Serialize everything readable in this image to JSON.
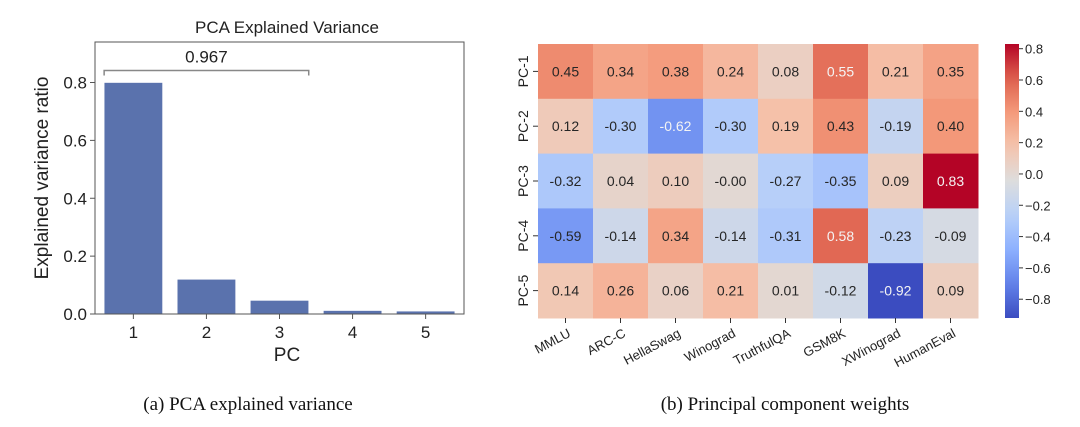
{
  "chart_data": [
    {
      "type": "bar",
      "title": "PCA Explained Variance",
      "xlabel": "PC",
      "ylabel": "Explained variance ratio",
      "categories": [
        "1",
        "2",
        "3",
        "4",
        "5"
      ],
      "values": [
        0.8,
        0.12,
        0.047,
        0.012,
        0.01
      ],
      "ylim": [
        0,
        0.94
      ],
      "yticks": [
        "0.0",
        "0.2",
        "0.4",
        "0.6",
        "0.8"
      ],
      "ytick_values": [
        0.0,
        0.2,
        0.4,
        0.6,
        0.8
      ],
      "bar_color": "#5a72ad",
      "annotation": {
        "text": "0.967",
        "span": [
          "1",
          "3"
        ],
        "description": "cumulative explained variance of first 3 PCs"
      },
      "grid": false,
      "caption": "(a) PCA explained variance"
    },
    {
      "type": "heatmap",
      "title": "",
      "rows": [
        "PC-1",
        "PC-2",
        "PC-3",
        "PC-4",
        "PC-5"
      ],
      "columns": [
        "MMLU",
        "ARC-C",
        "HellaSwag",
        "Winograd",
        "TruthfulQA",
        "GSM8K",
        "XWinograd",
        "HumanEval"
      ],
      "values": [
        [
          0.45,
          0.34,
          0.38,
          0.24,
          0.08,
          0.55,
          0.21,
          0.35
        ],
        [
          0.12,
          -0.3,
          -0.62,
          -0.3,
          0.19,
          0.43,
          -0.19,
          0.4
        ],
        [
          -0.32,
          0.04,
          0.1,
          -0.0,
          -0.27,
          -0.35,
          0.09,
          0.83
        ],
        [
          -0.59,
          -0.14,
          0.34,
          -0.14,
          -0.31,
          0.58,
          -0.23,
          -0.09
        ],
        [
          0.14,
          0.26,
          0.06,
          0.21,
          0.01,
          -0.12,
          -0.92,
          0.09
        ]
      ],
      "labels": [
        [
          "0.45",
          "0.34",
          "0.38",
          "0.24",
          "0.08",
          "0.55",
          "0.21",
          "0.35"
        ],
        [
          "0.12",
          "-0.30",
          "-0.62",
          "-0.30",
          "0.19",
          "0.43",
          "-0.19",
          "0.40"
        ],
        [
          "-0.32",
          "0.04",
          "0.10",
          "-0.00",
          "-0.27",
          "-0.35",
          "0.09",
          "0.83"
        ],
        [
          "-0.59",
          "-0.14",
          "0.34",
          "-0.14",
          "-0.31",
          "0.58",
          "-0.23",
          "-0.09"
        ],
        [
          "0.14",
          "0.26",
          "0.06",
          "0.21",
          "0.01",
          "-0.12",
          "-0.92",
          "0.09"
        ]
      ],
      "colormap": "coolwarm",
      "vmin": -0.92,
      "vmax": 0.83,
      "colorbar_ticks": [
        "0.8",
        "0.6",
        "0.4",
        "0.2",
        "0.0",
        "−0.2",
        "−0.4",
        "−0.6",
        "−0.8"
      ],
      "colorbar_tick_values": [
        0.8,
        0.6,
        0.4,
        0.2,
        0.0,
        -0.2,
        -0.4,
        -0.6,
        -0.8
      ],
      "caption": "(b) Principal component weights"
    }
  ]
}
